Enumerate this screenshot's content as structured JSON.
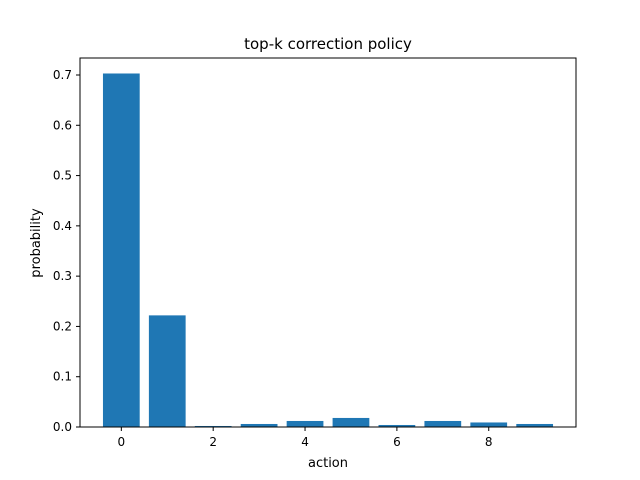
{
  "chart_data": {
    "type": "bar",
    "title": "top-k correction policy",
    "xlabel": "action",
    "ylabel": "probability",
    "categories": [
      0,
      1,
      2,
      3,
      4,
      5,
      6,
      7,
      8,
      9
    ],
    "values": [
      0.703,
      0.222,
      0.002,
      0.006,
      0.012,
      0.018,
      0.004,
      0.012,
      0.009,
      0.006
    ],
    "xlim": [
      -0.9,
      9.9
    ],
    "ylim": [
      0,
      0.7
    ],
    "xticks": [
      0,
      2,
      4,
      6,
      8
    ],
    "xtick_labels": [
      "0",
      "2",
      "4",
      "6",
      "8"
    ],
    "yticks": [
      0.0,
      0.1,
      0.2,
      0.3,
      0.4,
      0.5,
      0.6,
      0.7
    ],
    "ytick_labels": [
      "0.0",
      "0.1",
      "0.2",
      "0.3",
      "0.4",
      "0.5",
      "0.6",
      "0.7"
    ],
    "bar_color": "#1f77b4",
    "grid": false,
    "legend": "none"
  }
}
